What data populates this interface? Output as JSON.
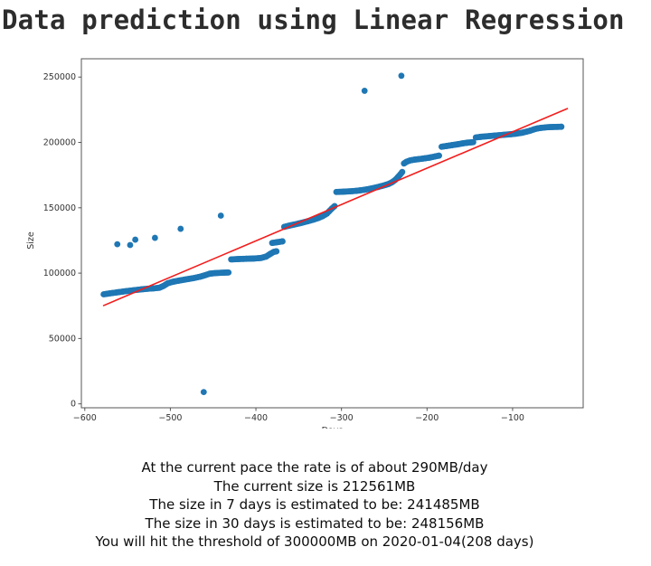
{
  "page_title": "Data prediction using Linear Regression",
  "chart_data": {
    "type": "scatter",
    "title": "Data prediction using Linear Regression",
    "xlabel": "Days",
    "xlabel_visibility": "clipped at figure bottom edge",
    "ylabel": "Size",
    "xlim": [
      -604,
      -17.5
    ],
    "ylim": [
      -3000,
      264000
    ],
    "x_tick_values": [
      -600,
      -500,
      -400,
      -300,
      -200,
      -100
    ],
    "x_tick_labels": [
      "−600",
      "−500",
      "−400",
      "−300",
      "−200",
      "−100"
    ],
    "y_tick_values": [
      0,
      50000,
      100000,
      150000,
      200000,
      250000
    ],
    "y_tick_labels": [
      "0",
      "50000",
      "100000",
      "150000",
      "200000",
      "250000"
    ],
    "grid": false,
    "legend": "none",
    "series": [
      {
        "name": "disk-size-history",
        "type": "scatter",
        "color": "#1f77b4",
        "marker_radius": 3.4,
        "sample_step_days": 1.2,
        "segments": [
          [
            [
              -578,
              83800
            ],
            [
              -570,
              84600
            ],
            [
              -561,
              85400
            ],
            [
              -552,
              86200
            ],
            [
              -543,
              86900
            ],
            [
              -534,
              87600
            ],
            [
              -526,
              88100
            ],
            [
              -519,
              88400
            ],
            [
              -513,
              88800
            ],
            [
              -508,
              90200
            ],
            [
              -503,
              92300
            ],
            [
              -497,
              93400
            ],
            [
              -489,
              94400
            ],
            [
              -481,
              95300
            ],
            [
              -473,
              96200
            ],
            [
              -465,
              97300
            ],
            [
              -459,
              98500
            ],
            [
              -454,
              99600
            ],
            [
              -448,
              100000
            ],
            [
              -440,
              100300
            ],
            [
              -432,
              100500
            ]
          ],
          [
            [
              -429,
              110500
            ],
            [
              -420,
              110800
            ],
            [
              -411,
              111000
            ],
            [
              -402,
              111200
            ],
            [
              -394,
              111600
            ],
            [
              -388,
              112700
            ],
            [
              -383,
              114800
            ],
            [
              -379,
              116300
            ],
            [
              -376,
              116700
            ]
          ],
          [
            [
              -381,
              123100
            ],
            [
              -375,
              123700
            ],
            [
              -369,
              124300
            ]
          ],
          [
            [
              -367,
              135400
            ],
            [
              -360,
              136500
            ],
            [
              -353,
              137500
            ],
            [
              -346,
              138600
            ],
            [
              -339,
              139800
            ],
            [
              -333,
              140900
            ],
            [
              -327,
              142200
            ],
            [
              -322,
              143600
            ],
            [
              -317,
              145600
            ],
            [
              -314,
              147600
            ],
            [
              -311,
              149600
            ],
            [
              -308,
              151300
            ]
          ],
          [
            [
              -306,
              162100
            ],
            [
              -298,
              162300
            ],
            [
              -290,
              162600
            ],
            [
              -282,
              163000
            ],
            [
              -274,
              163700
            ],
            [
              -266,
              164600
            ],
            [
              -258,
              165800
            ],
            [
              -251,
              167000
            ],
            [
              -245,
              168200
            ],
            [
              -241,
              169500
            ],
            [
              -237,
              171400
            ],
            [
              -234,
              173500
            ],
            [
              -231,
              175700
            ],
            [
              -229,
              177400
            ]
          ],
          [
            [
              -227,
              183900
            ],
            [
              -224,
              185200
            ],
            [
              -220,
              186200
            ],
            [
              -215,
              186800
            ],
            [
              -209,
              187300
            ],
            [
              -203,
              187800
            ],
            [
              -197,
              188400
            ],
            [
              -191,
              189200
            ],
            [
              -186,
              189900
            ]
          ],
          [
            [
              -183,
              196700
            ],
            [
              -177,
              197300
            ],
            [
              -171,
              197900
            ],
            [
              -165,
              198500
            ],
            [
              -159,
              199200
            ],
            [
              -153,
              199800
            ],
            [
              -146,
              200200
            ]
          ],
          [
            [
              -143,
              203800
            ],
            [
              -137,
              204300
            ],
            [
              -130,
              204700
            ],
            [
              -123,
              205100
            ],
            [
              -116,
              205500
            ],
            [
              -109,
              205900
            ],
            [
              -102,
              206300
            ],
            [
              -95,
              206800
            ],
            [
              -89,
              207400
            ],
            [
              -84,
              208200
            ],
            [
              -79,
              209100
            ],
            [
              -75,
              210000
            ],
            [
              -71,
              210700
            ],
            [
              -66,
              211200
            ],
            [
              -60,
              211600
            ],
            [
              -54,
              211800
            ],
            [
              -48,
              211900
            ],
            [
              -43,
              212000
            ]
          ]
        ],
        "outliers": [
          [
            -562,
            122100
          ],
          [
            -547,
            121500
          ],
          [
            -541,
            125600
          ],
          [
            -518,
            127000
          ],
          [
            -488,
            133900
          ],
          [
            -441,
            144000
          ],
          [
            -461,
            9000
          ],
          [
            -273,
            239500
          ],
          [
            -230,
            251000
          ]
        ]
      },
      {
        "name": "linear-regression-fit",
        "type": "line",
        "color": "#f41c1c",
        "stroke_width": 1.6,
        "points": [
          [
            -578,
            75200
          ],
          [
            -36,
            225900
          ]
        ]
      }
    ]
  },
  "summary": {
    "lines": [
      "At the current pace the rate is of about 290MB/day",
      "The current size is 212561MB",
      "The size in 7 days is estimated to be: 241485MB",
      "The size in 30 days is estimated to be: 248156MB",
      "You will hit the threshold of 300000MB on 2020-01-04(208 days)"
    ]
  },
  "colors": {
    "title": "#2d2d2d",
    "axis": "#555555",
    "tick_text": "#333333",
    "summary_text": "#0d0d0d",
    "background": "#ffffff"
  }
}
